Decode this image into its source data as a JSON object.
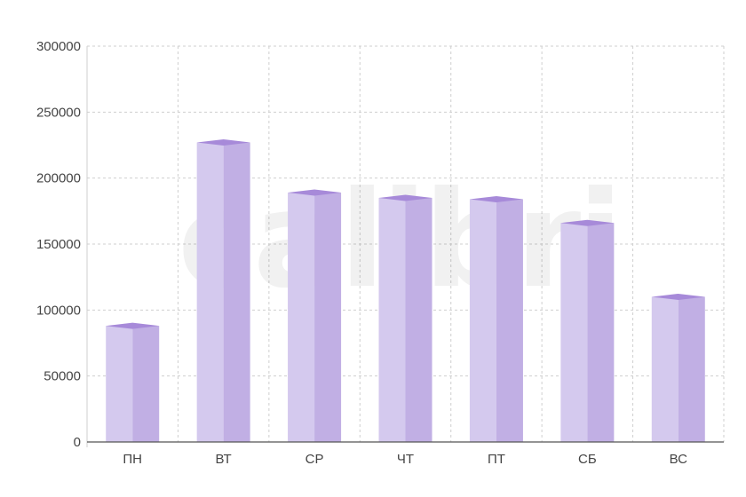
{
  "watermark_text": "calibri",
  "chart_data": {
    "type": "bar",
    "categories": [
      "ПН",
      "ВТ",
      "СР",
      "ЧТ",
      "ПТ",
      "СБ",
      "ВС"
    ],
    "values": [
      88000,
      227000,
      189000,
      185000,
      184000,
      166000,
      110000
    ],
    "yticks": [
      "0",
      "50000",
      "100000",
      "150000",
      "200000",
      "250000",
      "300000"
    ],
    "ylim": [
      0,
      300000
    ],
    "grid": true,
    "legend": "none",
    "colors": {
      "front": "#d4c9ee",
      "side": "#c1afe4",
      "top": "#a78ad9",
      "grid": "#cfcfcf",
      "axis": "#555555"
    }
  }
}
